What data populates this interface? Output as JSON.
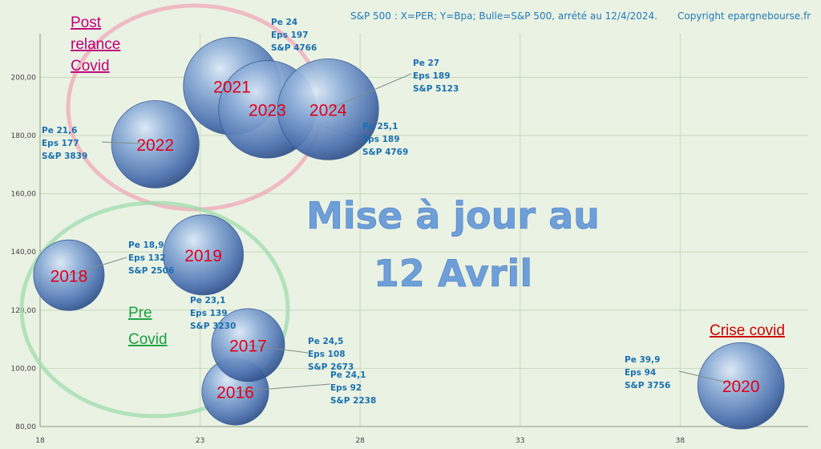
{
  "chart_data": {
    "type": "bubble",
    "title": "S&P 500 : X=PER; Y=Bpa; Bulle=S&P 500, arrété au 12/4/2024.",
    "copyright": "Copyright epargnebourse.fr",
    "xlabel": "",
    "ylabel": "",
    "xlim": [
      18,
      42
    ],
    "ylim": [
      80,
      215
    ],
    "x_ticks": [
      "18",
      "23",
      "28",
      "33",
      "38"
    ],
    "y_ticks": [
      "80,00",
      "100,00",
      "120,00",
      "140,00",
      "160,00",
      "180,00",
      "200,00"
    ],
    "grid": true,
    "points": [
      {
        "year": "2016",
        "pe": 24.1,
        "eps": 92,
        "sp": 2238,
        "label": [
          "Pe  24,1",
          "Eps  92",
          "S&P  2238"
        ]
      },
      {
        "year": "2017",
        "pe": 24.5,
        "eps": 108,
        "sp": 2673,
        "label": [
          "Pe  24,5",
          "Eps  108",
          "S&P  2673"
        ]
      },
      {
        "year": "2018",
        "pe": 18.9,
        "eps": 132,
        "sp": 2506,
        "label": [
          "Pe  18,9",
          "Eps  132",
          "S&P  2506"
        ]
      },
      {
        "year": "2019",
        "pe": 23.1,
        "eps": 139,
        "sp": 3230,
        "label": [
          "Pe  23,1",
          "Eps  139",
          "S&P  3230"
        ]
      },
      {
        "year": "2020",
        "pe": 39.9,
        "eps": 94,
        "sp": 3756,
        "label": [
          "Pe  39,9",
          "Eps  94",
          "S&P  3756"
        ]
      },
      {
        "year": "2021",
        "pe": 24,
        "eps": 197,
        "sp": 4766,
        "label": [
          "Pe  24",
          "Eps  197",
          "S&P  4766"
        ]
      },
      {
        "year": "2022",
        "pe": 21.6,
        "eps": 177,
        "sp": 3839,
        "label": [
          "Pe  21,6",
          "Eps  177",
          "S&P  3839"
        ]
      },
      {
        "year": "2023",
        "pe": 25.1,
        "eps": 189,
        "sp": 4769,
        "label": [
          "Pe  25,1",
          "Eps  189",
          "S&P  4769"
        ]
      },
      {
        "year": "2024",
        "pe": 27,
        "eps": 189,
        "sp": 5123,
        "label": [
          "Pe  27",
          "Eps  189",
          "S&P  5123"
        ]
      }
    ],
    "groups": [
      {
        "name": "post-relance",
        "lines": [
          "Post",
          "relance",
          "Covid"
        ],
        "color": "#c0007a",
        "ring_color": "#f0a8b8"
      },
      {
        "name": "pre-covid",
        "lines": [
          "Pre",
          "Covid"
        ],
        "color": "#1aa040",
        "ring_color": "#9fdcae"
      },
      {
        "name": "crise-covid",
        "lines": [
          "Crise covid"
        ],
        "color": "#d00000"
      }
    ],
    "overlay": [
      "Mise à jour au",
      "12 Avril"
    ]
  }
}
